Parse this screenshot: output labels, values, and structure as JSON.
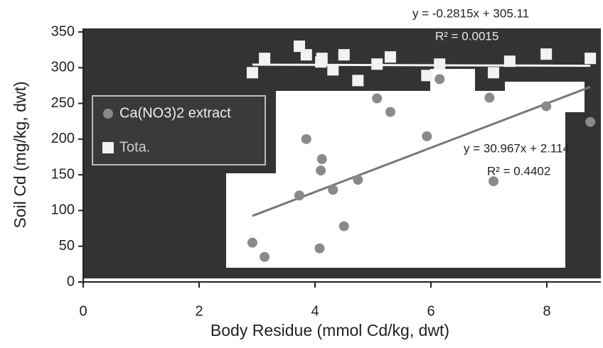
{
  "chart_data": {
    "type": "scatter",
    "x_label": "Body Residue (mmol Cd/kg, dwt)",
    "y_label": "Soil Cd (mg/kg, dwt)",
    "xlim": [
      0,
      8.9
    ],
    "ylim": [
      0,
      350
    ],
    "xticks": [
      0,
      2,
      4,
      6,
      8
    ],
    "yticks": [
      0,
      50,
      100,
      150,
      200,
      250,
      300,
      350
    ],
    "series": [
      {
        "name": "Ca(NO3)2 extract",
        "color": "#8a8a8a",
        "marker": "circle",
        "x": [
          2.92,
          3.13,
          3.85,
          3.73,
          4.12,
          4.1,
          4.31,
          4.08,
          4.5,
          4.74,
          5.07,
          5.3,
          5.93,
          6.15,
          7.08,
          7.01,
          7.99,
          8.75
        ],
        "values": [
          55,
          35,
          200,
          121,
          172,
          156,
          129,
          47,
          78,
          143,
          257,
          238,
          204,
          284,
          141,
          258,
          246,
          224
        ],
        "trendline": {
          "equation": "y = 30.967x + 2.114",
          "r2": "R² = 0.4402",
          "slope": 30.967,
          "intercept": 2.114,
          "xrange": [
            2.92,
            8.75
          ]
        }
      },
      {
        "name": "Tota.",
        "color": "#f2f2f2",
        "marker": "square",
        "x": [
          2.92,
          3.13,
          3.73,
          3.85,
          4.12,
          4.31,
          4.1,
          4.5,
          4.74,
          5.07,
          5.3,
          5.93,
          6.15,
          7.08,
          7.36,
          7.99,
          8.75
        ],
        "values": [
          293,
          313,
          330,
          318,
          313,
          297,
          308,
          318,
          282,
          305,
          315,
          289,
          305,
          293,
          309,
          319,
          313
        ],
        "trendline": {
          "equation": "y = -0.2815x + 305.11",
          "r2": "R² = 0.0015",
          "slope": -0.2815,
          "intercept": 305.11,
          "xrange": [
            2.92,
            8.75
          ]
        }
      }
    ]
  }
}
